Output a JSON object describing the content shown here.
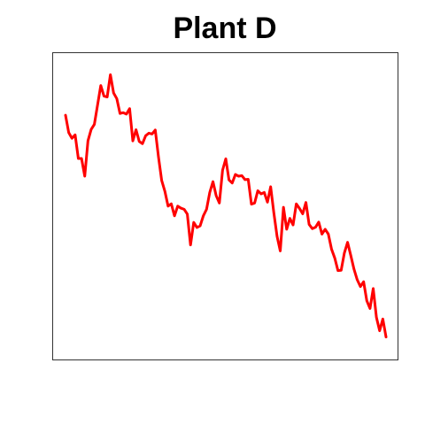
{
  "chart_data": {
    "type": "line",
    "title": "Plant D",
    "xlabel": "",
    "ylabel": "",
    "grid": false,
    "axes_visible": false,
    "xlim": [
      0,
      1
    ],
    "ylim": [
      0,
      1
    ],
    "series": [
      {
        "color": "#ff0000",
        "values": [
          0.818,
          0.757,
          0.737,
          0.749,
          0.666,
          0.666,
          0.604,
          0.728,
          0.768,
          0.786,
          0.854,
          0.922,
          0.885,
          0.882,
          0.96,
          0.896,
          0.876,
          0.824,
          0.827,
          0.822,
          0.841,
          0.728,
          0.767,
          0.726,
          0.718,
          0.746,
          0.755,
          0.752,
          0.766,
          0.672,
          0.589,
          0.551,
          0.499,
          0.507,
          0.465,
          0.499,
          0.492,
          0.488,
          0.471,
          0.363,
          0.442,
          0.424,
          0.43,
          0.465,
          0.488,
          0.547,
          0.585,
          0.536,
          0.51,
          0.625,
          0.665,
          0.591,
          0.58,
          0.61,
          0.604,
          0.606,
          0.592,
          0.593,
          0.506,
          0.51,
          0.553,
          0.542,
          0.547,
          0.513,
          0.567,
          0.475,
          0.393,
          0.342,
          0.495,
          0.418,
          0.456,
          0.433,
          0.507,
          0.491,
          0.472,
          0.512,
          0.435,
          0.42,
          0.425,
          0.443,
          0.401,
          0.418,
          0.401,
          0.348,
          0.317,
          0.273,
          0.274,
          0.335,
          0.372,
          0.326,
          0.278,
          0.241,
          0.217,
          0.234,
          0.167,
          0.14,
          0.21,
          0.109,
          0.062,
          0.103,
          0.04
        ]
      }
    ]
  }
}
